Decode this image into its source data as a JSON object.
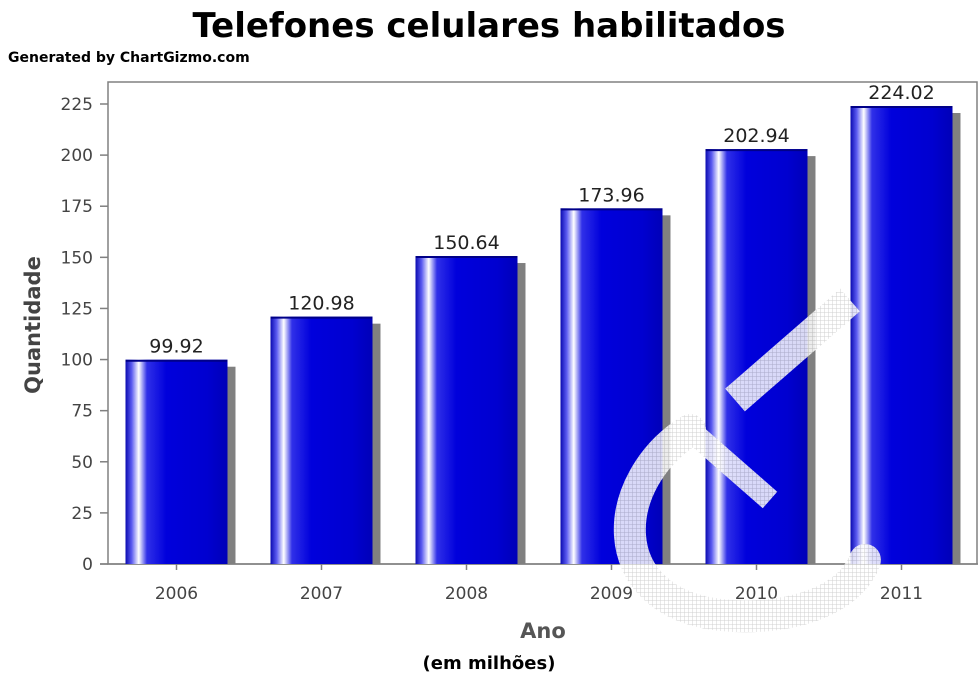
{
  "chart_data": {
    "type": "bar",
    "title": "Telefones celulares habilitados",
    "credit": "Generated by ChartGizmo.com",
    "xlabel": "Ano",
    "ylabel": "Quantidade",
    "note": "(em milhões)",
    "categories": [
      "2006",
      "2007",
      "2008",
      "2009",
      "2010",
      "2011"
    ],
    "values": [
      99.92,
      120.98,
      150.64,
      173.96,
      202.94,
      224.02
    ],
    "value_labels": [
      "99.92",
      "120.98",
      "150.64",
      "173.96",
      "202.94",
      "224.02"
    ],
    "ylim": [
      0,
      225
    ],
    "yticks": [
      0,
      25,
      50,
      75,
      100,
      125,
      150,
      175,
      200,
      225
    ],
    "grid": false,
    "legend": "none",
    "colors": {
      "bar": "#0000d8",
      "bar_highlight": "#ffffff",
      "shadow": "#808080",
      "axis": "#808080"
    }
  }
}
